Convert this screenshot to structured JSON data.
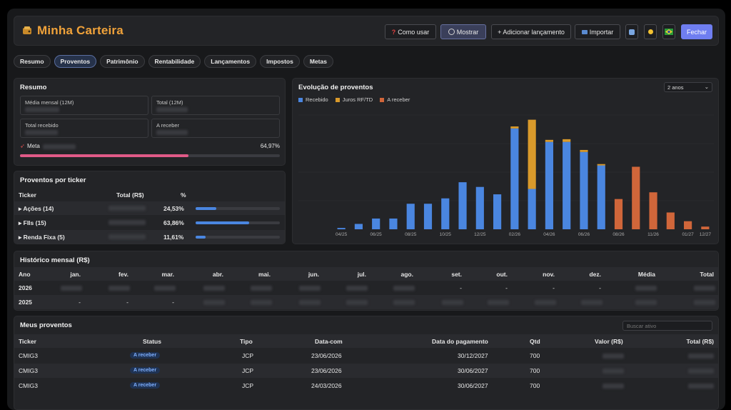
{
  "header": {
    "title": "Minha Carteira",
    "buttons": {
      "como_usar": "Como usar",
      "mostrar": "Mostrar",
      "adicionar": "+ Adicionar lançamento",
      "importar": "Importar",
      "fechar": "Fechar"
    }
  },
  "tabs": [
    "Resumo",
    "Proventos",
    "Patrimônio",
    "Rentabilidade",
    "Lançamentos",
    "Impostos",
    "Metas"
  ],
  "resumo": {
    "title": "Resumo",
    "media_label": "Média mensal (12M)",
    "total_label": "Total (12M)",
    "recebido_label": "Total recebido",
    "a_receber_label": "A receber",
    "meta_label": "Meta",
    "meta_pct": "64,97%",
    "meta_fraction": 0.6497
  },
  "ticker": {
    "title": "Proventos por ticker",
    "col_ticker": "Ticker",
    "col_total": "Total (R$)",
    "col_pct": "%",
    "rows": [
      {
        "name": "▸ Ações (14)",
        "pct": "24,53%",
        "fraction": 0.2453
      },
      {
        "name": "▸ FIIs (15)",
        "pct": "63,86%",
        "fraction": 0.6386
      },
      {
        "name": "▸ Renda Fixa (5)",
        "pct": "11,61%",
        "fraction": 0.1161
      }
    ]
  },
  "chart": {
    "title": "Evolução de proventos",
    "period": "2 anos",
    "colors": {
      "recebido": "#4a86e0",
      "juros": "#d99a2b",
      "receber": "#d0663a"
    }
  },
  "chart_data": {
    "type": "bar",
    "stacked": true,
    "x_tick_labels": [
      "04/25",
      "06/25",
      "08/25",
      "10/25",
      "12/25",
      "02/26",
      "04/26",
      "06/26",
      "08/26",
      "11/26",
      "01/27",
      "12/27"
    ],
    "series": [
      {
        "name": "Recebido",
        "values": [
          2,
          8,
          16,
          16,
          38,
          38,
          46,
          70,
          63,
          52,
          150,
          60,
          130,
          130,
          115,
          95,
          0,
          0,
          0,
          0,
          0,
          0
        ]
      },
      {
        "name": "Juros RF/TD",
        "values": [
          0,
          0,
          0,
          0,
          0,
          0,
          0,
          0,
          0,
          0,
          3,
          103,
          3,
          4,
          3,
          2,
          0,
          0,
          0,
          0,
          0,
          0
        ]
      },
      {
        "name": "A receber",
        "values": [
          0,
          0,
          0,
          0,
          0,
          0,
          0,
          0,
          0,
          0,
          0,
          0,
          0,
          0,
          0,
          0,
          45,
          93,
          55,
          25,
          12,
          4
        ]
      }
    ]
  },
  "historico": {
    "title": "Histórico mensal (R$)",
    "columns": [
      "Ano",
      "jan.",
      "fev.",
      "mar.",
      "abr.",
      "mai.",
      "jun.",
      "jul.",
      "ago.",
      "set.",
      "out.",
      "nov.",
      "dez.",
      "Média",
      "Total"
    ],
    "rows": [
      {
        "ano": "2026",
        "dashes": [
          "",
          "",
          "",
          "",
          "",
          "",
          "",
          "",
          "-",
          "-",
          "-",
          "-",
          "",
          ""
        ]
      },
      {
        "ano": "2025",
        "dashes": [
          "-",
          "-",
          "-",
          "",
          "",
          "",
          "",
          "",
          "",
          "",
          "",
          "",
          "",
          ""
        ]
      }
    ]
  },
  "proventos": {
    "title": "Meus proventos",
    "search_placeholder": "Buscar ativo",
    "columns": [
      "Ticker",
      "Status",
      "Tipo",
      "Data-com",
      "Data do pagamento",
      "Qtd",
      "Valor (R$)",
      "Total (R$)"
    ],
    "rows": [
      {
        "ticker": "CMIG3",
        "status": "A receber",
        "tipo": "JCP",
        "data_com": "23/06/2026",
        "pagamento": "30/12/2027",
        "qtd": "700"
      },
      {
        "ticker": "CMIG3",
        "status": "A receber",
        "tipo": "JCP",
        "data_com": "23/06/2026",
        "pagamento": "30/06/2027",
        "qtd": "700"
      },
      {
        "ticker": "CMIG3",
        "status": "A receber",
        "tipo": "JCP",
        "data_com": "24/03/2026",
        "pagamento": "30/06/2027",
        "qtd": "700"
      }
    ]
  }
}
